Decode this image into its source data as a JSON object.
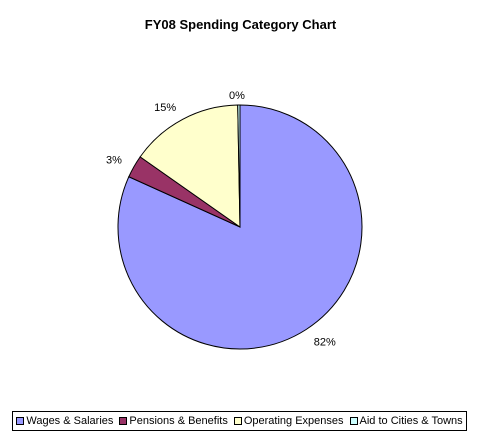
{
  "chart_data": {
    "type": "pie",
    "title": "FY08 Spending Category Chart",
    "categories": [
      "Wages & Salaries",
      "Pensions & Benefits",
      "Operating Expenses",
      "Aid to Cities & Towns"
    ],
    "values": [
      82,
      3,
      15,
      0.3
    ],
    "labels": [
      "82%",
      "3%",
      "15%",
      "0%"
    ],
    "colors": [
      "#9999ff",
      "#993366",
      "#ffffcc",
      "#ccffff"
    ],
    "legend_position": "bottom"
  }
}
